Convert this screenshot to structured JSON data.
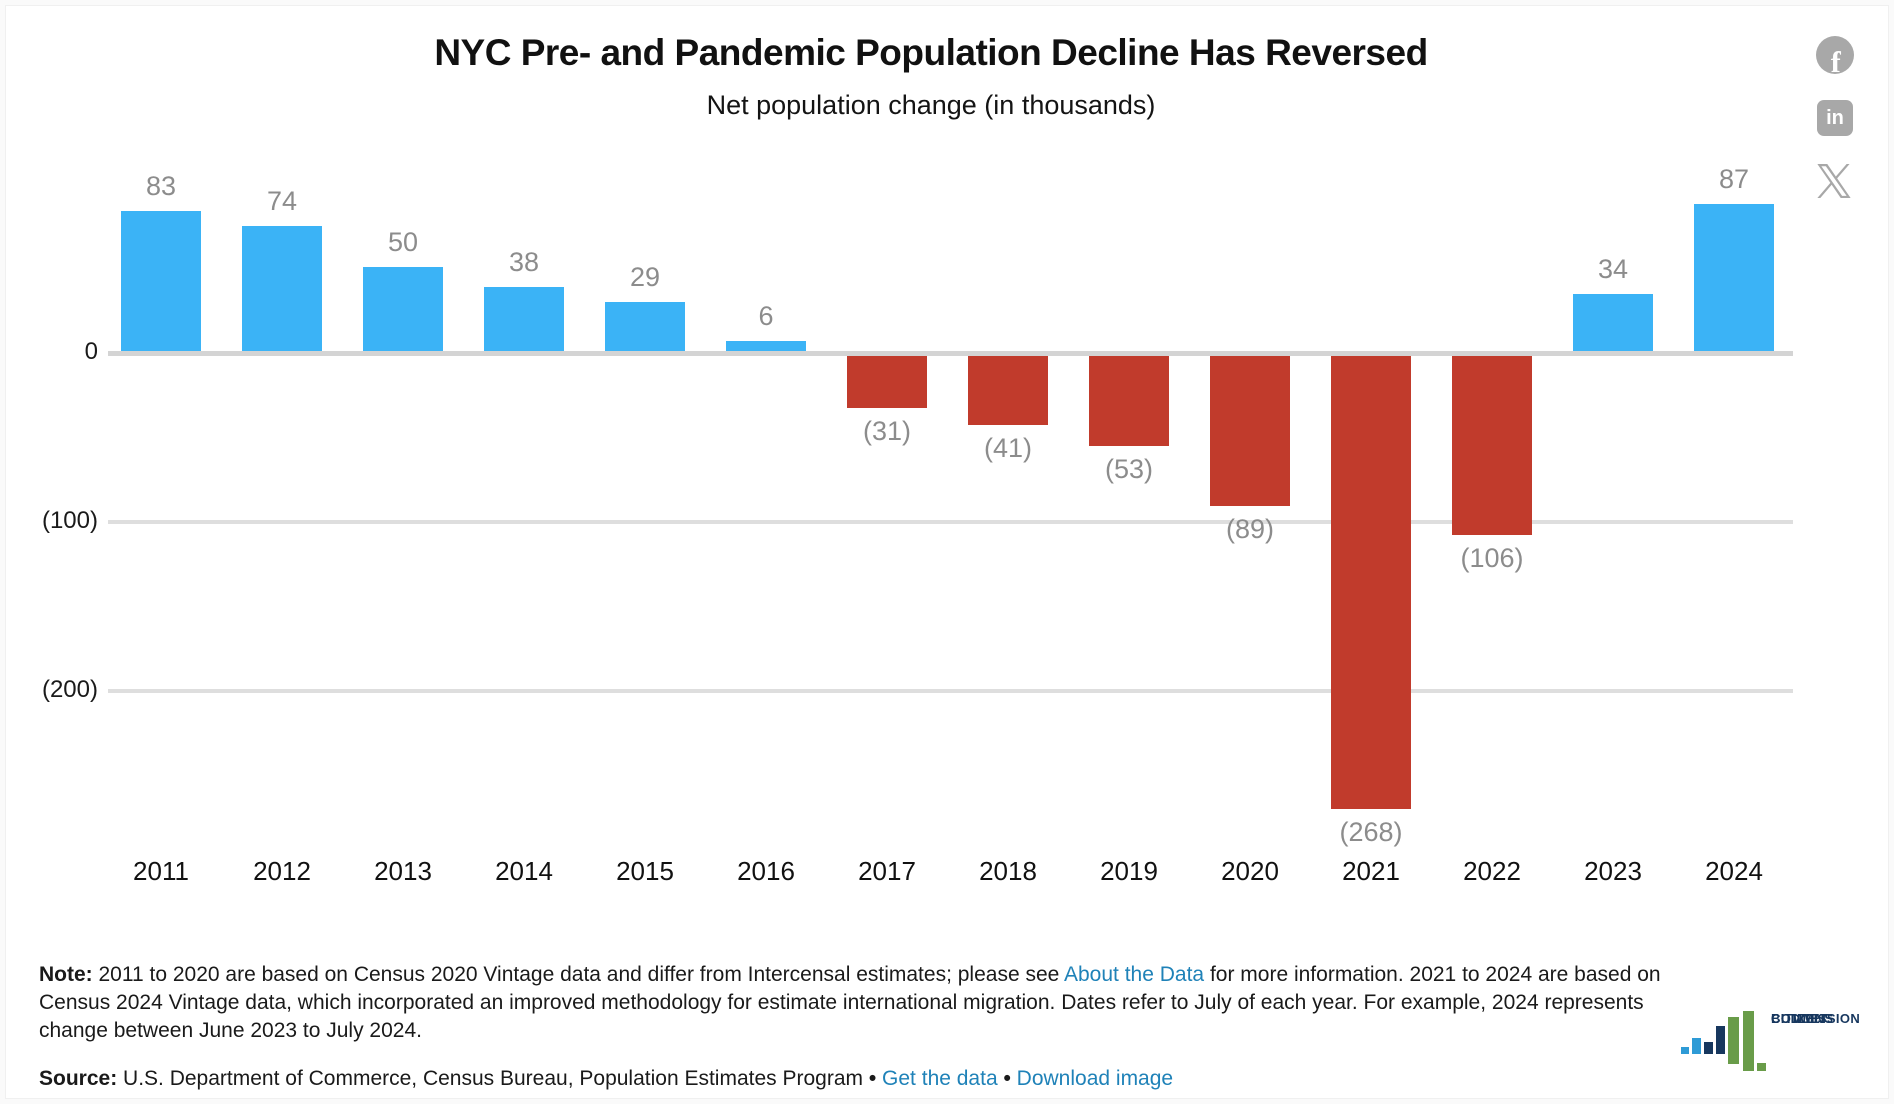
{
  "header": {
    "title": "NYC Pre- and Pandemic Population Decline Has Reversed",
    "subtitle": "Net population change (in thousands)"
  },
  "chart_data": {
    "type": "bar",
    "title": "NYC Pre- and Pandemic Population Decline Has Reversed",
    "subtitle": "Net population change (in thousands)",
    "categories": [
      "2011",
      "2012",
      "2013",
      "2014",
      "2015",
      "2016",
      "2017",
      "2018",
      "2019",
      "2020",
      "2021",
      "2022",
      "2023",
      "2024"
    ],
    "values": [
      83,
      74,
      50,
      38,
      29,
      6,
      -31,
      -41,
      -53,
      -89,
      -268,
      -106,
      34,
      87
    ],
    "bar_labels": [
      "83",
      "74",
      "50",
      "38",
      "29",
      "6",
      "(31)",
      "(41)",
      "(53)",
      "(89)",
      "(268)",
      "(106)",
      "34",
      "87"
    ],
    "y_ticks": [
      {
        "value": 0,
        "label": "0"
      },
      {
        "value": -100,
        "label": "(100)"
      },
      {
        "value": -200,
        "label": "(200)"
      }
    ],
    "ylim": [
      -290,
      100
    ],
    "xlabel": "",
    "ylabel": "",
    "grid": true,
    "legend": "none",
    "colors": {
      "positive": "#3bb3f6",
      "negative": "#c13b2c",
      "label": "#8c8c8c"
    }
  },
  "footnote": {
    "segments": [
      {
        "style": "bold",
        "text": "Note: "
      },
      {
        "style": "plain",
        "text": "2011 to 2020 are based on Census 2020 Vintage data and differ from Intercensal estimates; please see "
      },
      {
        "style": "link",
        "text": "About the Data"
      },
      {
        "style": "plain",
        "text": " for more information. 2021 to 2024 are based on Census 2024 Vintage data, which incorporated an improved methodology for estimate international migration. Dates refer to July of each year. For example, 2024 represents change between June 2023 to July 2024."
      }
    ]
  },
  "source": {
    "segments": [
      {
        "style": "bold",
        "text": "Source: "
      },
      {
        "style": "plain",
        "text": "U.S. Department of Commerce, Census Bureau, Population Estimates Program"
      },
      {
        "style": "bullet",
        "text": "  •  "
      },
      {
        "style": "link",
        "text": "Get the data"
      },
      {
        "style": "bullet",
        "text": "  •  "
      },
      {
        "style": "link",
        "text": "Download image"
      }
    ]
  },
  "social": {
    "facebook_glyph": "f",
    "linkedin_glyph": "in"
  },
  "logo": {
    "lines": [
      "CITIZENS",
      "BUDGET",
      "COMMISSION"
    ]
  }
}
